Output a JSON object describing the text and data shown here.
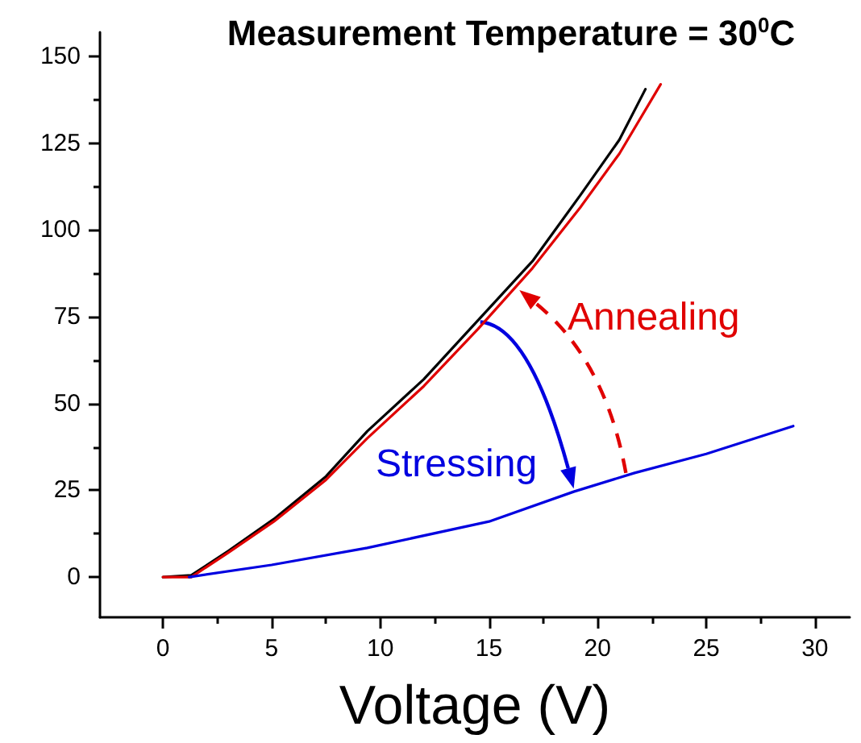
{
  "chart_data": {
    "type": "line",
    "title": "Measurement Temperature = 30$^{0}$C",
    "xlabel": "Voltage (V)",
    "xlim": [
      -2.9,
      31.6
    ],
    "xticks": [
      0,
      5,
      10,
      15,
      20,
      25,
      30
    ],
    "ylim": [
      -11.6,
      157
    ],
    "yticks": [
      0,
      25,
      50,
      75,
      100,
      125,
      150
    ],
    "grid": false,
    "marker": "none",
    "line_style": "solid",
    "series": [
      {
        "color": "#000000",
        "x": [
          0,
          1.3,
          3,
          5.1,
          7.5,
          9.4,
          12,
          14.5,
          17,
          19.2,
          21,
          22.2
        ],
        "values": [
          0,
          0.5,
          7.5,
          16.7,
          29,
          42,
          57,
          74,
          91,
          110,
          126,
          140.6
        ]
      },
      {
        "color": "#e00000",
        "x": [
          0,
          1.3,
          3,
          5.1,
          7.5,
          9.4,
          12,
          14.5,
          17,
          19.2,
          21,
          22.9
        ],
        "values": [
          0,
          0,
          7,
          16,
          28,
          40,
          55,
          71.5,
          89,
          106.5,
          122,
          142
        ]
      },
      {
        "color": "#0000e0",
        "x": [
          1.2,
          5,
          9.4,
          15,
          18.9,
          21.7,
          25,
          29
        ],
        "values": [
          0,
          3.5,
          8.4,
          16,
          24.6,
          30,
          35.5,
          43.5
        ]
      }
    ],
    "annotations": [
      "Stressing",
      "Annealing"
    ]
  }
}
